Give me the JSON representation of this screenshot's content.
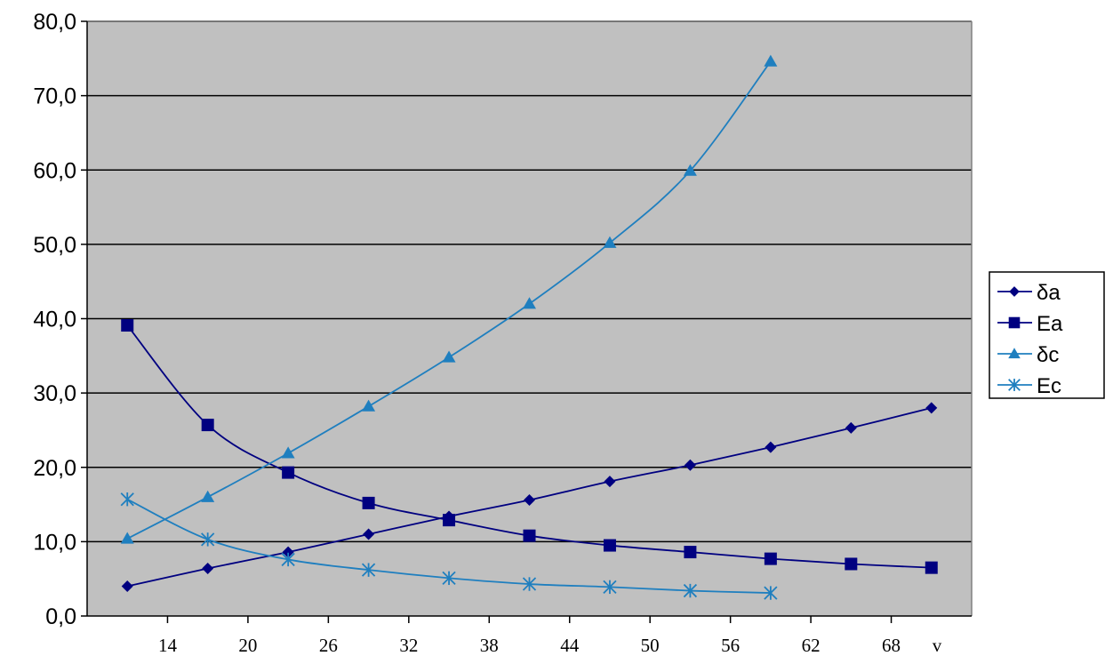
{
  "chart_data": {
    "type": "line",
    "title": "",
    "xlabel": "v",
    "ylabel": "",
    "ylim": [
      0,
      80
    ],
    "y_tick_labels": [
      "0,0",
      "10,0",
      "20,0",
      "30,0",
      "40,0",
      "50,0",
      "60,0",
      "70,0",
      "80,0"
    ],
    "x_tick_labels": [
      "14",
      "20",
      "26",
      "32",
      "38",
      "44",
      "50",
      "56",
      "62",
      "68"
    ],
    "x_tick_values": [
      14,
      20,
      26,
      32,
      38,
      44,
      50,
      56,
      62,
      68
    ],
    "xlim": [
      8,
      74
    ],
    "grid": "horizontal",
    "plot_background": "#c0c0c0",
    "legend_position": "right",
    "series": [
      {
        "name": "δa",
        "marker": "diamond",
        "color": "#000080",
        "x": [
          11,
          17,
          23,
          29,
          35,
          41,
          47,
          53,
          59,
          65,
          71
        ],
        "values": [
          4.0,
          6.4,
          8.6,
          11.0,
          13.4,
          15.6,
          18.1,
          20.3,
          22.7,
          25.3,
          28.0
        ]
      },
      {
        "name": "Ea",
        "marker": "square",
        "color": "#000080",
        "x": [
          11,
          17,
          23,
          29,
          35,
          41,
          47,
          53,
          59,
          65,
          71
        ],
        "values": [
          39.1,
          25.7,
          19.3,
          15.2,
          12.9,
          10.8,
          9.5,
          8.6,
          7.7,
          7.0,
          6.5
        ]
      },
      {
        "name": "δc",
        "marker": "triangle",
        "color": "#1f7fbf",
        "x": [
          11,
          17,
          23,
          29,
          35,
          41,
          47,
          53,
          59
        ],
        "values": [
          10.4,
          16.0,
          21.9,
          28.2,
          34.8,
          42.0,
          50.2,
          59.9,
          74.6
        ]
      },
      {
        "name": "Ec",
        "marker": "asterisk",
        "color": "#1f7fbf",
        "x": [
          11,
          17,
          23,
          29,
          35,
          41,
          47,
          53,
          59
        ],
        "values": [
          15.7,
          10.3,
          7.6,
          6.2,
          5.1,
          4.3,
          3.9,
          3.4,
          3.1
        ]
      }
    ]
  }
}
